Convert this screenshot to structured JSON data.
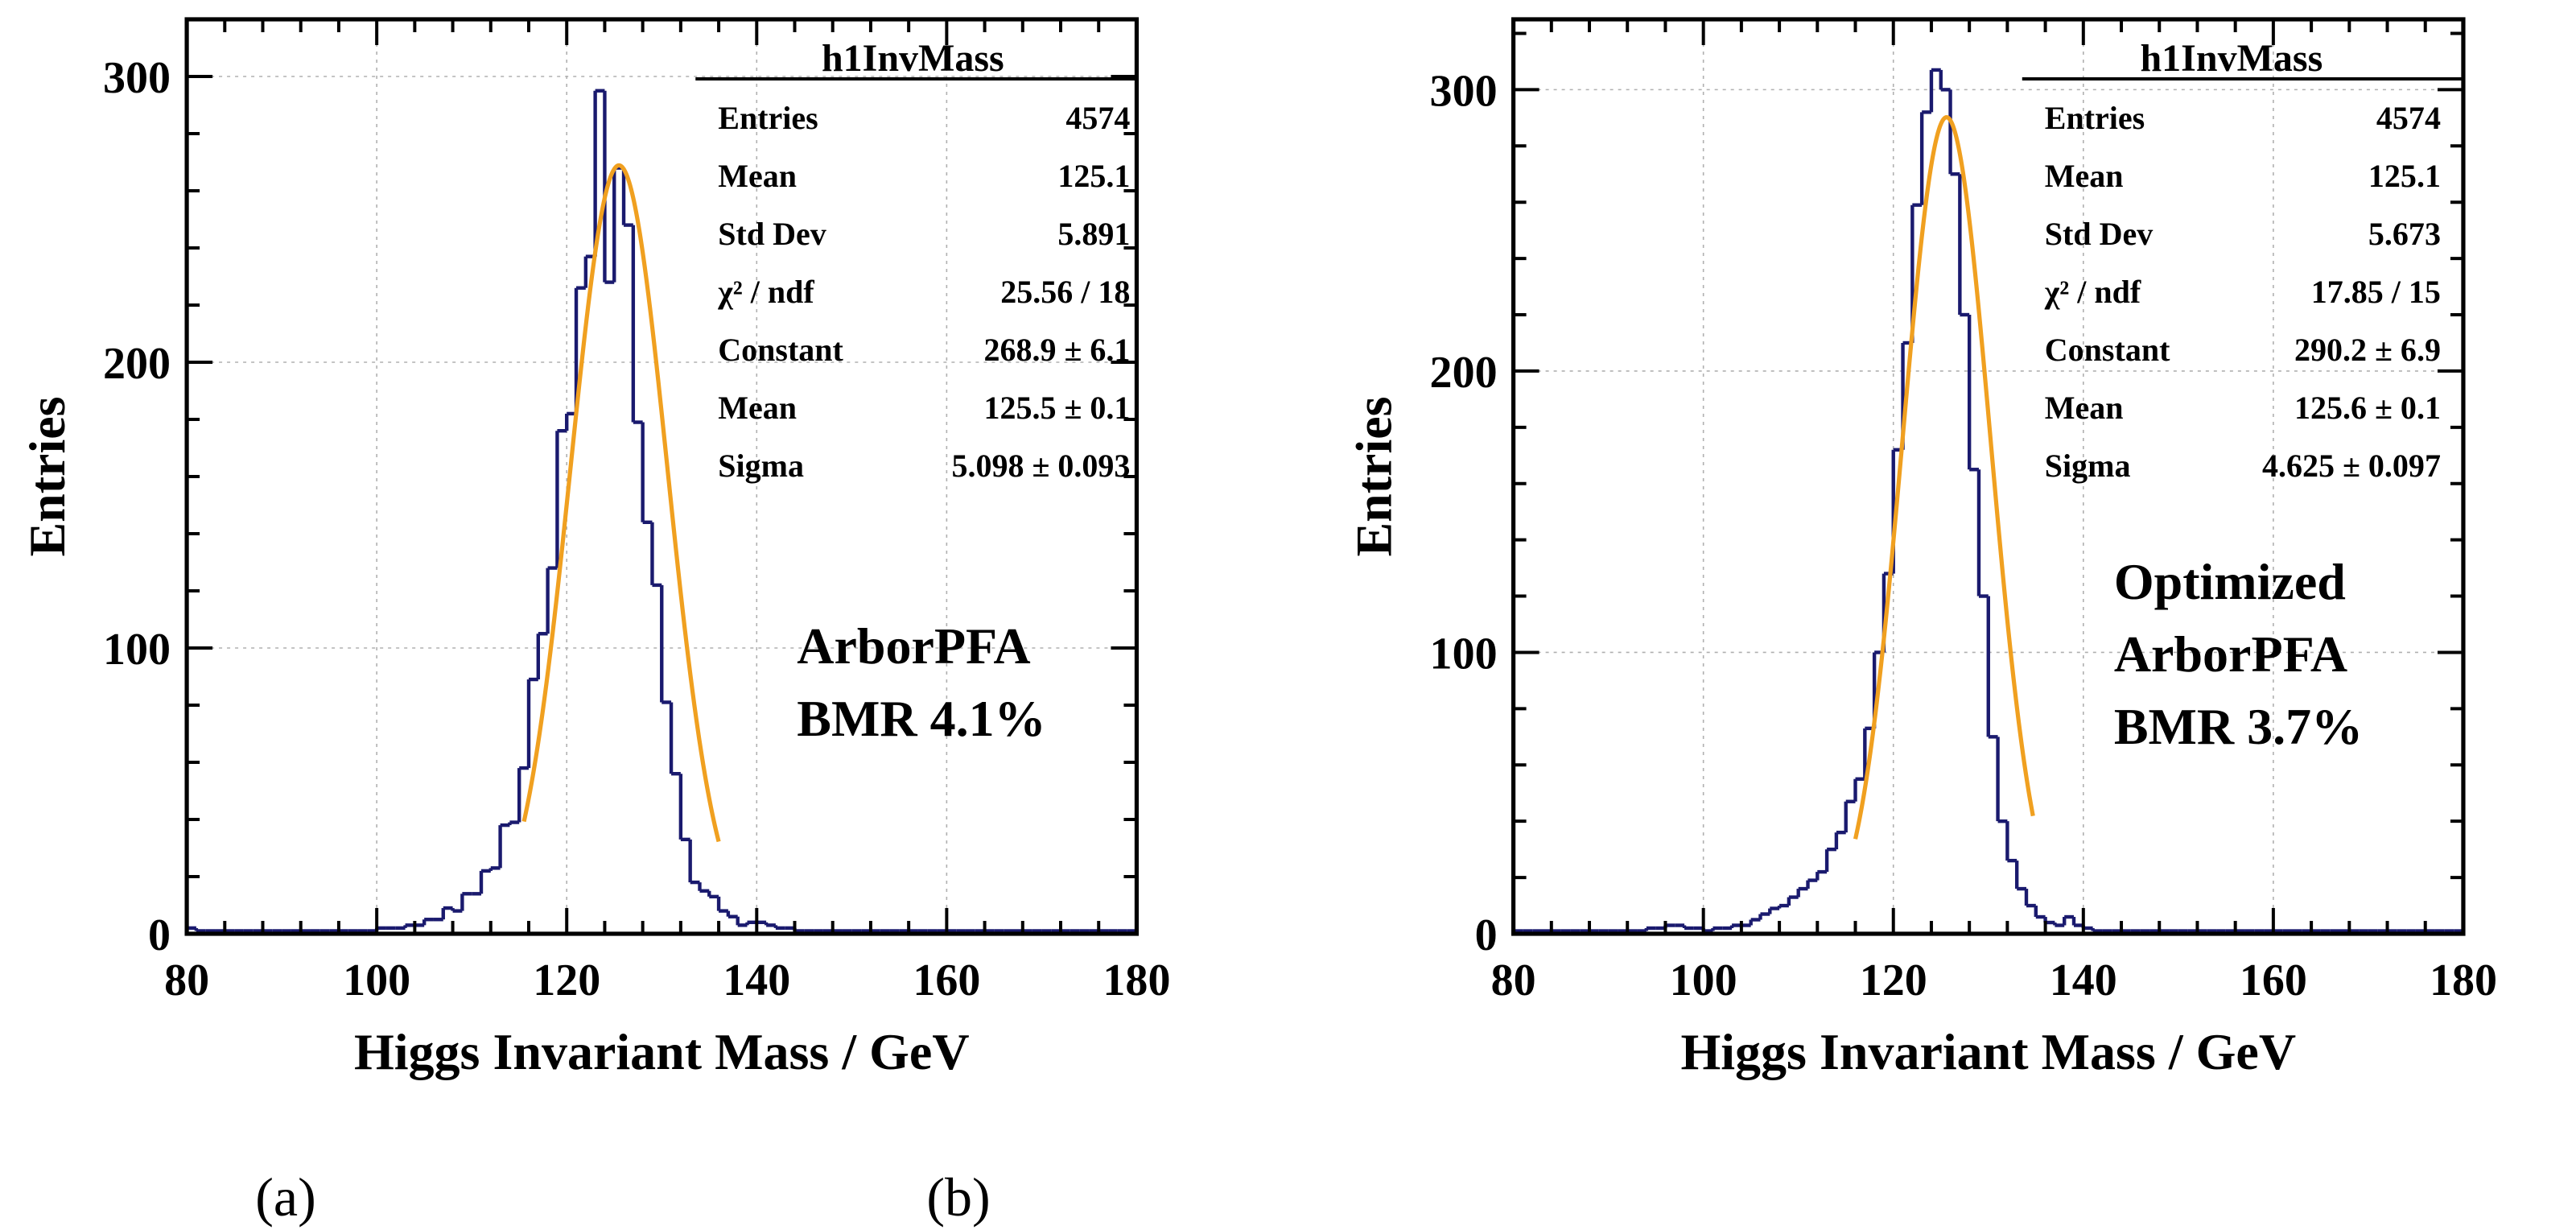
{
  "chart_data": [
    {
      "type": "histogram",
      "caption": "(a)",
      "xlabel": "Higgs Invariant Mass / GeV",
      "ylabel": "Entries",
      "xlim": [
        80,
        180
      ],
      "ylim": [
        0,
        320
      ],
      "xticks": [
        80,
        100,
        120,
        140,
        160,
        180
      ],
      "yticks": [
        0,
        100,
        200,
        300
      ],
      "grid": true,
      "annotation": [
        "ArborPFA",
        "BMR 4.1%"
      ],
      "stats": {
        "title": "h1InvMass",
        "rows": [
          {
            "label": "Entries",
            "value": "4574"
          },
          {
            "label": "Mean",
            "value": "125.1"
          },
          {
            "label": "Std Dev",
            "value": "5.891"
          },
          {
            "label": "χ² / ndf",
            "value": "25.56 / 18"
          },
          {
            "label": "Constant",
            "value": "268.9 ± 6.1"
          },
          {
            "label": "Mean",
            "value": "125.5 ± 0.1"
          },
          {
            "label": "Sigma",
            "value": "5.098 ± 0.093"
          }
        ]
      },
      "fit": {
        "function": "gaus",
        "constant": 268.9,
        "mean": 125.5,
        "sigma": 5.098,
        "range": [
          115.5,
          136
        ]
      },
      "bin_width": 1,
      "bins_start": 80,
      "values": [
        2,
        1,
        1,
        1,
        1,
        1,
        1,
        1,
        1,
        1,
        1,
        1,
        1,
        1,
        1,
        1,
        1,
        1,
        1,
        1,
        2,
        2,
        2,
        3,
        3,
        5,
        5,
        9,
        8,
        14,
        14,
        22,
        23,
        38,
        39,
        58,
        89,
        105,
        128,
        176,
        182,
        226,
        237,
        295,
        228,
        268,
        248,
        179,
        144,
        122,
        81,
        56,
        33,
        18,
        15,
        13,
        8,
        6,
        3,
        4,
        4,
        3,
        2,
        2,
        1,
        1,
        1,
        1,
        1,
        1,
        1,
        1,
        1,
        1,
        1,
        1,
        1,
        1,
        1,
        1,
        1,
        1,
        1,
        1,
        1,
        1,
        1,
        1,
        1,
        1,
        1,
        1,
        1,
        1,
        1,
        1,
        1,
        1,
        1,
        1
      ]
    },
    {
      "type": "histogram",
      "caption": "(b)",
      "xlabel": "Higgs Invariant Mass / GeV",
      "ylabel": "Entries",
      "xlim": [
        80,
        180
      ],
      "ylim": [
        0,
        325
      ],
      "xticks": [
        80,
        100,
        120,
        140,
        160,
        180
      ],
      "yticks": [
        0,
        100,
        200,
        300
      ],
      "grid": true,
      "annotation": [
        "Optimized",
        "ArborPFA",
        "BMR 3.7%"
      ],
      "stats": {
        "title": "h1InvMass",
        "rows": [
          {
            "label": "Entries",
            "value": "4574"
          },
          {
            "label": "Mean",
            "value": "125.1"
          },
          {
            "label": "Std Dev",
            "value": "5.673"
          },
          {
            "label": "χ² / ndf",
            "value": "17.85 / 15"
          },
          {
            "label": "Constant",
            "value": "290.2 ± 6.9"
          },
          {
            "label": "Mean",
            "value": "125.6 ± 0.1"
          },
          {
            "label": "Sigma",
            "value": "4.625 ± 0.097"
          }
        ]
      },
      "fit": {
        "function": "gaus",
        "constant": 290.2,
        "mean": 125.6,
        "sigma": 4.625,
        "range": [
          116,
          134.7
        ]
      },
      "bin_width": 1,
      "bins_start": 80,
      "values": [
        1,
        1,
        1,
        1,
        1,
        1,
        1,
        1,
        1,
        1,
        1,
        1,
        1,
        1,
        2,
        2,
        3,
        3,
        2,
        2,
        1,
        2,
        2,
        3,
        3,
        5,
        7,
        9,
        10,
        13,
        16,
        19,
        22,
        30,
        36,
        47,
        55,
        73,
        100,
        128,
        172,
        210,
        259,
        292,
        307,
        300,
        270,
        220,
        165,
        120,
        70,
        40,
        26,
        16,
        10,
        6,
        4,
        3,
        6,
        3,
        2,
        1,
        1,
        1,
        1,
        1,
        1,
        1,
        1,
        1,
        1,
        1,
        1,
        1,
        1,
        1,
        1,
        1,
        1,
        1,
        1,
        1,
        1,
        1,
        1,
        1,
        1,
        1,
        1,
        1,
        1,
        1,
        1,
        1,
        1,
        1,
        1,
        1,
        1,
        1
      ]
    }
  ]
}
